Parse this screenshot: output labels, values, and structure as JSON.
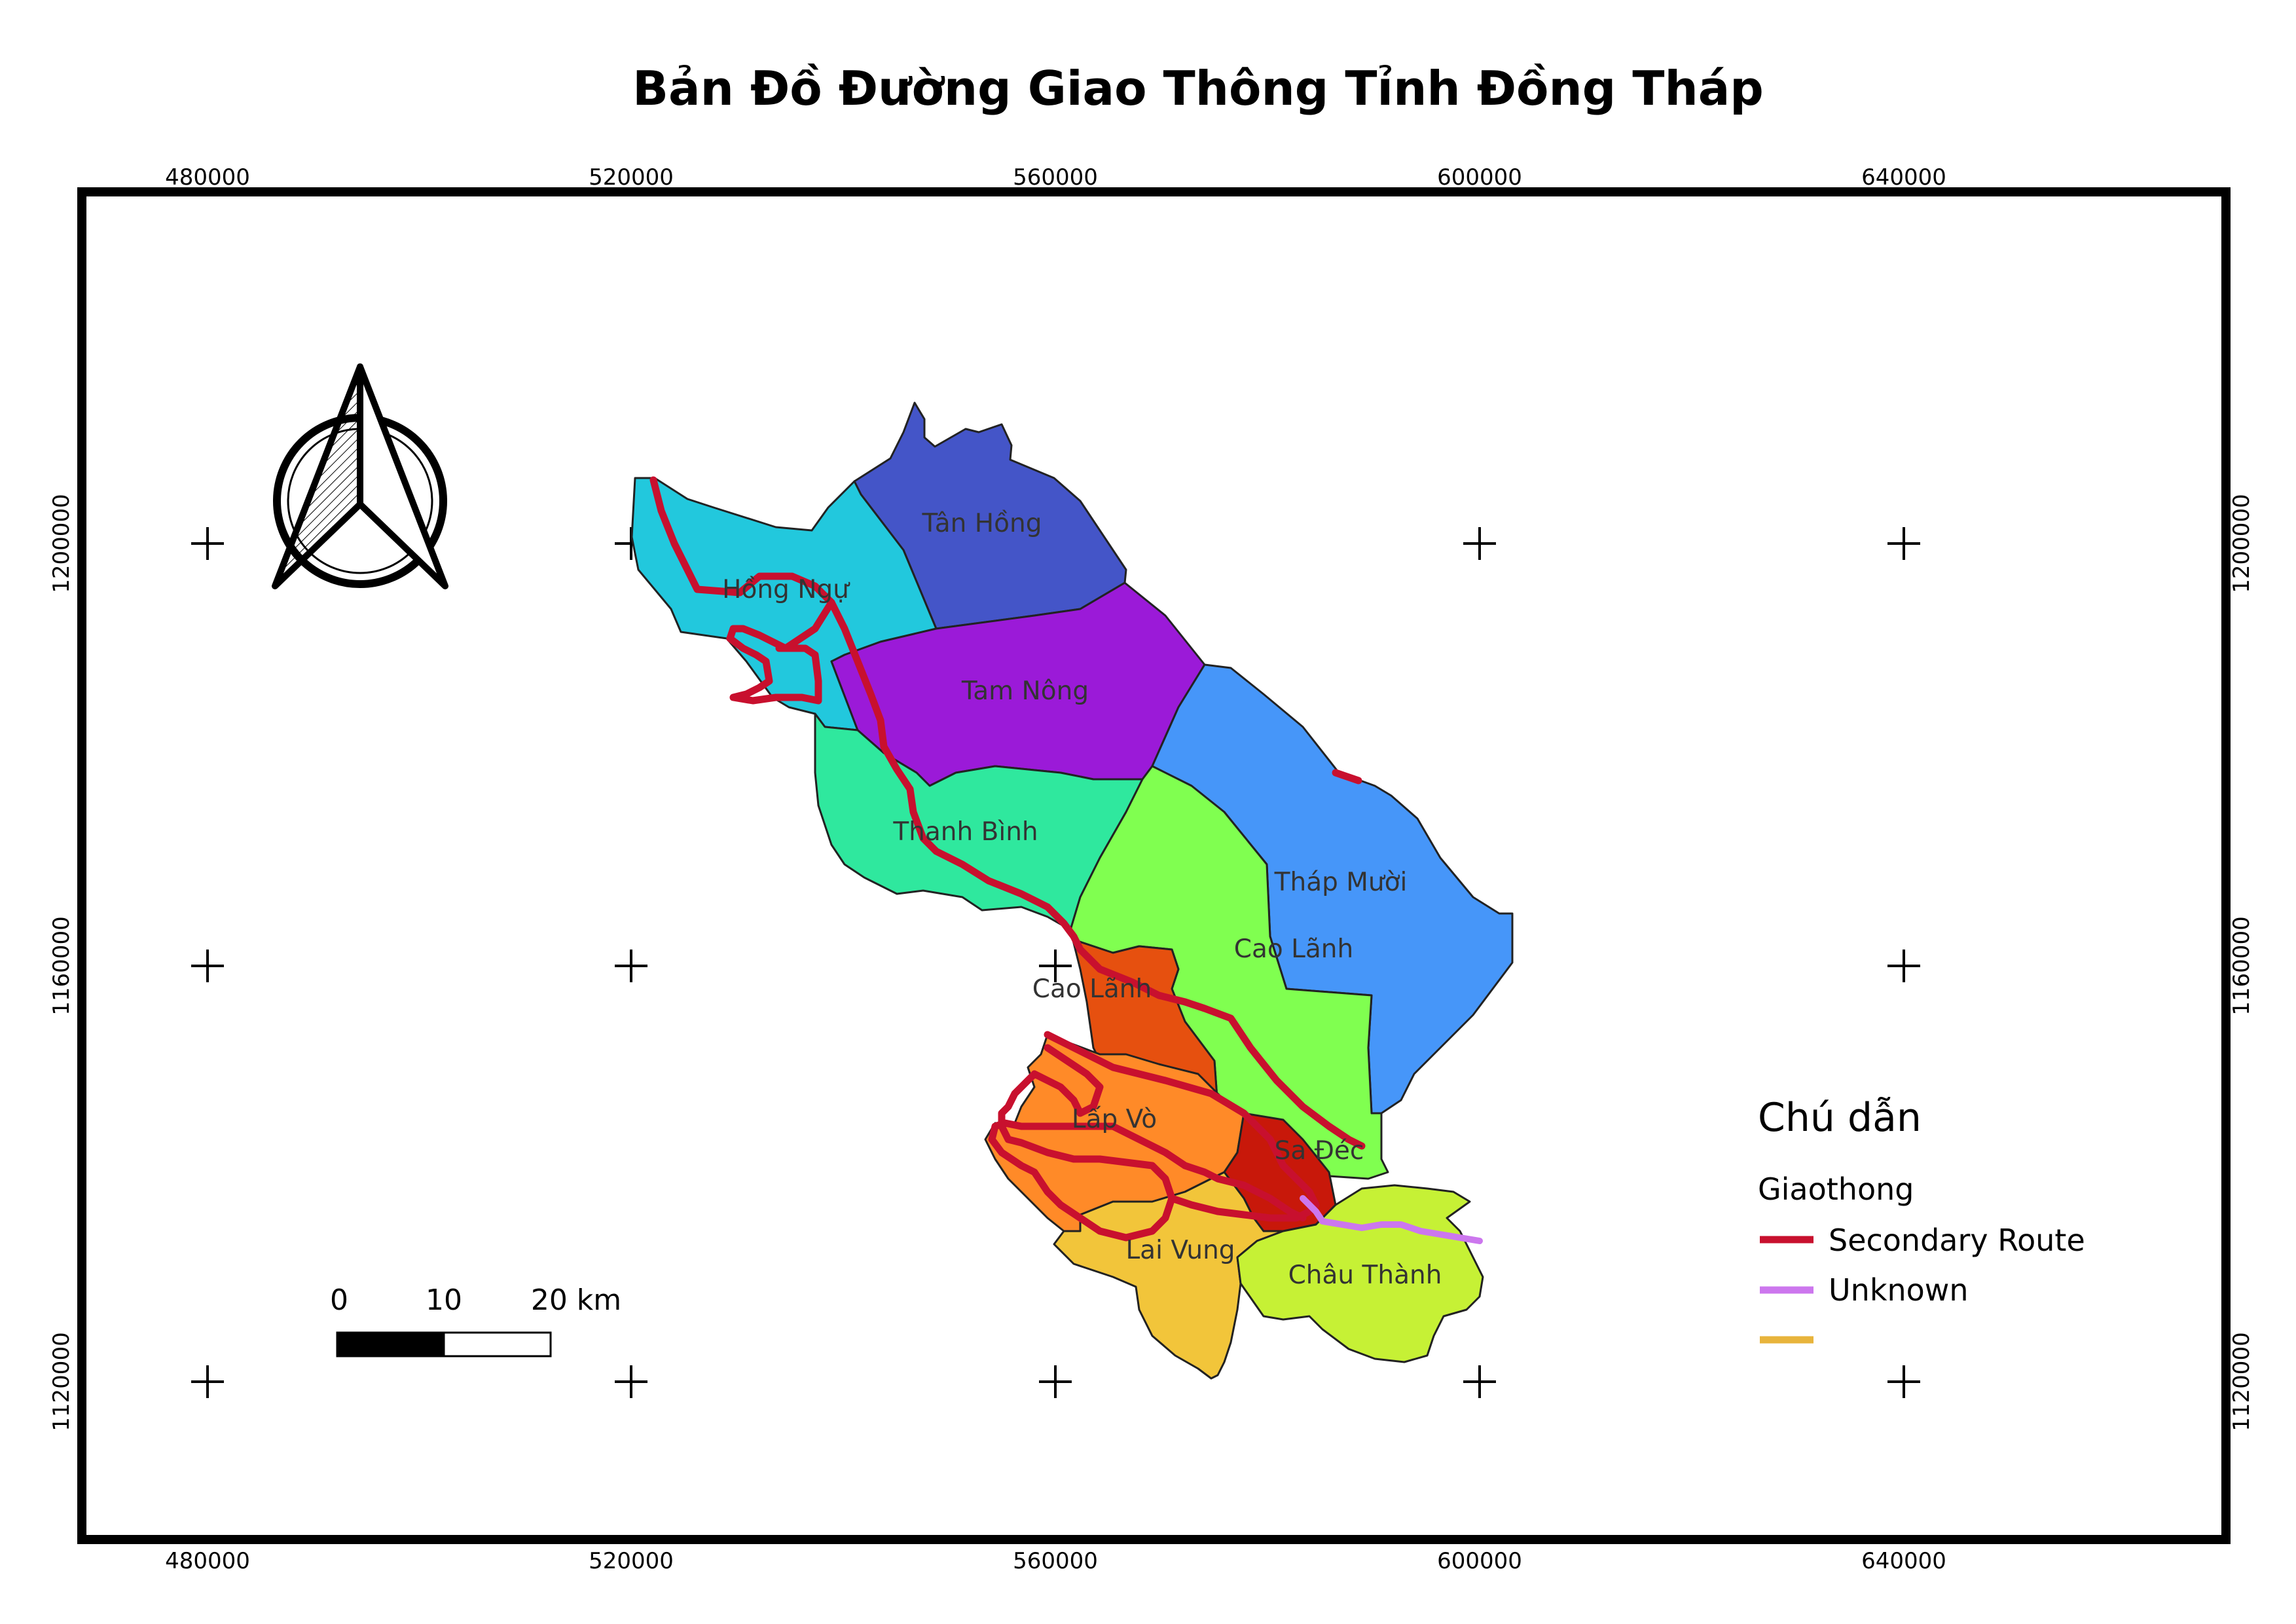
{
  "title": "Bản Đồ Đường Giao Thông Tỉnh Đồng Tháp",
  "grid": {
    "x_labels": [
      "480000",
      "520000",
      "560000",
      "600000",
      "640000"
    ],
    "y_labels": [
      "1200000",
      "1160000",
      "1120000"
    ]
  },
  "districts": [
    {
      "key": "tan-hong",
      "name": "Tân Hồng",
      "color": "#4455c8"
    },
    {
      "key": "hong-ngu",
      "name": "Hồng Ngự",
      "color": "#22c8dd"
    },
    {
      "key": "tam-nong",
      "name": "Tam Nông",
      "color": "#9b1ad8"
    },
    {
      "key": "thap-muoi",
      "name": "Tháp Mười",
      "color": "#4696f9"
    },
    {
      "key": "thanh-binh",
      "name": "Thanh Bình",
      "color": "#2fe89e"
    },
    {
      "key": "cao-lanh-district",
      "name": "Cao Lãnh",
      "color": "#80ff50"
    },
    {
      "key": "cao-lanh-city",
      "name": "Cao Lãnh",
      "color": "#e6500f"
    },
    {
      "key": "lap-vo",
      "name": "Lấp Vò",
      "color": "#ff8a28"
    },
    {
      "key": "sa-dec",
      "name": "Sa Đéc",
      "color": "#c8180a"
    },
    {
      "key": "lai-vung",
      "name": "Lai Vung",
      "color": "#f2c53a"
    },
    {
      "key": "chau-thanh",
      "name": "Châu Thành",
      "color": "#c6f135"
    }
  ],
  "legend": {
    "title": "Chú dẫn",
    "group": "Giaothong",
    "items": [
      {
        "label": "Secondary Route",
        "color": "#c8102e"
      },
      {
        "label": "Unknown",
        "color": "#cc77ee"
      },
      {
        "label": "",
        "color": "#e8b43c"
      }
    ]
  },
  "scale_bar": {
    "labels": [
      "0",
      "10",
      "20 km"
    ]
  },
  "north_arrow": {
    "icon": "north-arrow-icon"
  }
}
